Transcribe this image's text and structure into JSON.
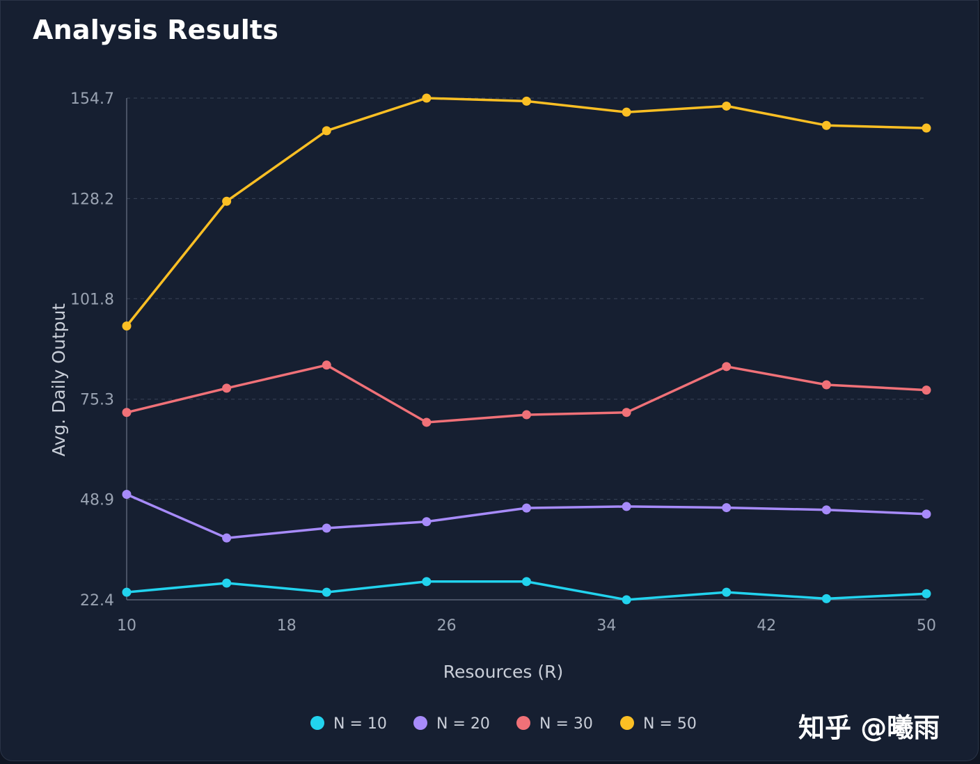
{
  "panel": {
    "title": "Analysis Results"
  },
  "watermark": {
    "text": "知乎 @曦雨"
  },
  "colors": {
    "background": "#161f31",
    "grid": "#3a4458",
    "axis": "#5a6477",
    "N10": "#22d3ee",
    "N20": "#a78bfa",
    "N30": "#f07178",
    "N50": "#fbbf24"
  },
  "chart_data": {
    "type": "line",
    "xlabel": "Resources (R)",
    "ylabel": "Avg. Daily Output",
    "xlim": [
      10,
      50
    ],
    "ylim": [
      22.4,
      154.7
    ],
    "xticks": [
      "10",
      "18",
      "26",
      "34",
      "42",
      "50"
    ],
    "yticks": [
      "154.7",
      "128.2",
      "101.8",
      "75.3",
      "48.9",
      "22.4"
    ],
    "grid": "horizontal-dashed",
    "legend_position": "bottom-center",
    "x": [
      10,
      15,
      20,
      25,
      30,
      35,
      40,
      45,
      50
    ],
    "series": [
      {
        "name": "N = 10",
        "color": "#22d3ee",
        "values": [
          24.4,
          26.8,
          24.4,
          27.2,
          27.2,
          22.4,
          24.4,
          22.7,
          24.0
        ]
      },
      {
        "name": "N = 20",
        "color": "#a78bfa",
        "values": [
          50.2,
          38.7,
          41.3,
          43.0,
          46.6,
          47.0,
          46.7,
          46.1,
          45.0
        ]
      },
      {
        "name": "N = 30",
        "color": "#f07178",
        "values": [
          71.8,
          78.2,
          84.3,
          69.2,
          71.2,
          71.8,
          83.9,
          79.1,
          77.7
        ]
      },
      {
        "name": "N = 50",
        "color": "#fbbf24",
        "values": [
          94.6,
          127.5,
          146.1,
          154.7,
          153.9,
          151.0,
          152.6,
          147.5,
          146.8
        ]
      }
    ]
  }
}
